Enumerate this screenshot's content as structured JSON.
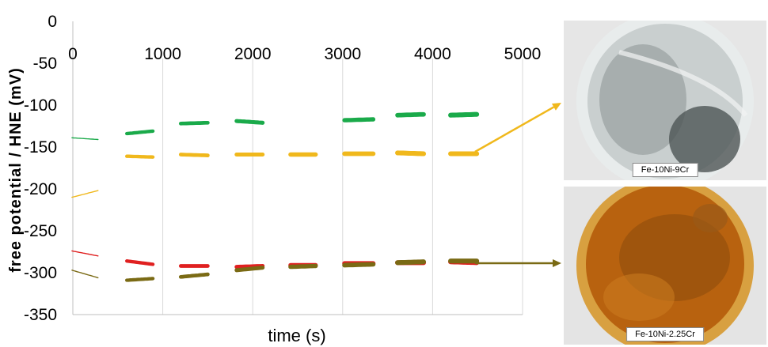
{
  "chart_data": {
    "type": "scatter",
    "title": "",
    "xlabel": "time (s)",
    "ylabel": "free potential / HNE (mV)",
    "xlim": [
      0,
      5000
    ],
    "ylim": [
      -350,
      0
    ],
    "x_ticks": [
      "0",
      "1000",
      "2000",
      "3000",
      "4000",
      "5000"
    ],
    "y_ticks": [
      "0",
      "-50",
      "-100",
      "-150",
      "-200",
      "-250",
      "-300",
      "-350"
    ],
    "grid": "vertical",
    "series": [
      {
        "color": "#1aaa4a",
        "segments": [
          {
            "x": [
              -10,
              280
            ],
            "y": [
              -139,
              -141
            ]
          },
          {
            "x": [
              600,
              890
            ],
            "y": [
              -134,
              -131
            ]
          },
          {
            "x": [
              1200,
              1500
            ],
            "y": [
              -122,
              -121
            ]
          },
          {
            "x": [
              1820,
              2110
            ],
            "y": [
              -119,
              -121
            ]
          },
          {
            "x": [
              3020,
              3340
            ],
            "y": [
              -118,
              -117
            ]
          },
          {
            "x": [
              3610,
              3900
            ],
            "y": [
              -112,
              -111
            ]
          },
          {
            "x": [
              4200,
              4490
            ],
            "y": [
              -112,
              -111
            ]
          }
        ]
      },
      {
        "color": "#f0b81c",
        "segments": [
          {
            "x": [
              -10,
              280
            ],
            "y": [
              -210,
              -202
            ]
          },
          {
            "x": [
              600,
              890
            ],
            "y": [
              -161,
              -162
            ]
          },
          {
            "x": [
              1200,
              1500
            ],
            "y": [
              -159,
              -160
            ]
          },
          {
            "x": [
              1820,
              2110
            ],
            "y": [
              -159,
              -159
            ]
          },
          {
            "x": [
              2420,
              2700
            ],
            "y": [
              -159,
              -159
            ]
          },
          {
            "x": [
              3020,
              3340
            ],
            "y": [
              -158,
              -158
            ]
          },
          {
            "x": [
              3610,
              3900
            ],
            "y": [
              -157,
              -158
            ]
          },
          {
            "x": [
              4200,
              4490
            ],
            "y": [
              -158,
              -158
            ]
          }
        ]
      },
      {
        "color": "#e02020",
        "segments": [
          {
            "x": [
              -10,
              280
            ],
            "y": [
              -274,
              -280
            ]
          },
          {
            "x": [
              600,
              890
            ],
            "y": [
              -286,
              -290
            ]
          },
          {
            "x": [
              1200,
              1500
            ],
            "y": [
              -292,
              -292
            ]
          },
          {
            "x": [
              1820,
              2110
            ],
            "y": [
              -293,
              -292
            ]
          },
          {
            "x": [
              2420,
              2700
            ],
            "y": [
              -291,
              -291
            ]
          },
          {
            "x": [
              3020,
              3340
            ],
            "y": [
              -289,
              -289
            ]
          },
          {
            "x": [
              3610,
              3900
            ],
            "y": [
              -288,
              -288
            ]
          },
          {
            "x": [
              4200,
              4490
            ],
            "y": [
              -287,
              -288
            ]
          }
        ]
      },
      {
        "color": "#7a6a14",
        "segments": [
          {
            "x": [
              -10,
              280
            ],
            "y": [
              -297,
              -306
            ]
          },
          {
            "x": [
              600,
              890
            ],
            "y": [
              -309,
              -307
            ]
          },
          {
            "x": [
              1200,
              1500
            ],
            "y": [
              -305,
              -302
            ]
          },
          {
            "x": [
              1820,
              2110
            ],
            "y": [
              -297,
              -294
            ]
          },
          {
            "x": [
              2420,
              2700
            ],
            "y": [
              -293,
              -292
            ]
          },
          {
            "x": [
              3020,
              3340
            ],
            "y": [
              -291,
              -290
            ]
          },
          {
            "x": [
              3610,
              3900
            ],
            "y": [
              -288,
              -287
            ]
          },
          {
            "x": [
              4200,
              4490
            ],
            "y": [
              -286,
              -286
            ]
          }
        ]
      }
    ],
    "arrows": [
      {
        "color": "#f0b81c",
        "from_series": 1,
        "to": "photo-top"
      },
      {
        "color": "#7a6a14",
        "from_series": 3,
        "to": "photo-bottom"
      }
    ]
  },
  "photos": {
    "top": {
      "label": "Fe-10Ni-9Cr",
      "disk_color": "#c9cfcf",
      "rim_color": "#e8ecec",
      "bg_color": "#e6e6e6"
    },
    "bottom": {
      "label": "Fe-10Ni-2.25Cr",
      "disk_color": "#b8620f",
      "rim_color": "#d8a040",
      "bg_color": "#e4e4e4"
    }
  }
}
